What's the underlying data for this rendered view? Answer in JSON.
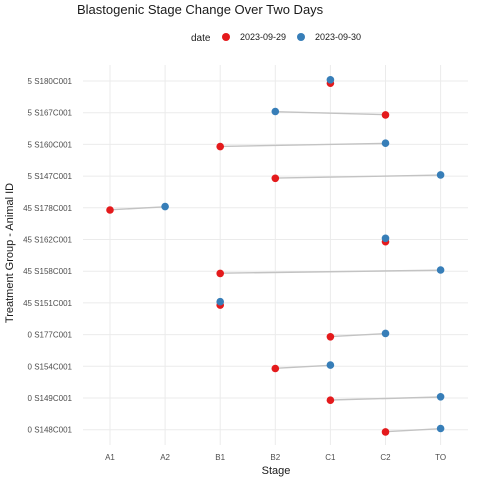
{
  "chart_data": {
    "type": "scatter",
    "title": "Blastogenic Stage Change Over Two Days",
    "xlabel": "Stage",
    "ylabel": "Treatment Group - Animal ID",
    "legend_title": "date",
    "legend_position": "top",
    "grid": true,
    "x_categories": [
      "A1",
      "A2",
      "B1",
      "B2",
      "C1",
      "C2",
      "TO"
    ],
    "y_categories": [
      "5 S180C001",
      "5 S167C001",
      "5 S160C001",
      "5 S147C001",
      "45 S178C001",
      "45 S162C001",
      "45 S158C001",
      "45 S151C001",
      "0 S177C001",
      "0 S154C001",
      "0 S149C001",
      "0 S148C001"
    ],
    "series": [
      {
        "name": "2023-09-29",
        "color": "#e41a1c",
        "points": [
          {
            "y": "5 S180C001",
            "x": "C1"
          },
          {
            "y": "5 S167C001",
            "x": "C2"
          },
          {
            "y": "5 S160C001",
            "x": "B1"
          },
          {
            "y": "5 S147C001",
            "x": "B2"
          },
          {
            "y": "45 S178C001",
            "x": "A1"
          },
          {
            "y": "45 S162C001",
            "x": "C2"
          },
          {
            "y": "45 S158C001",
            "x": "B1"
          },
          {
            "y": "45 S151C001",
            "x": "B1"
          },
          {
            "y": "0 S177C001",
            "x": "C1"
          },
          {
            "y": "0 S154C001",
            "x": "B2"
          },
          {
            "y": "0 S149C001",
            "x": "C1"
          },
          {
            "y": "0 S148C001",
            "x": "C2"
          }
        ]
      },
      {
        "name": "2023-09-30",
        "color": "#377eb8",
        "points": [
          {
            "y": "5 S180C001",
            "x": "C1"
          },
          {
            "y": "5 S167C001",
            "x": "B2"
          },
          {
            "y": "5 S160C001",
            "x": "C2"
          },
          {
            "y": "5 S147C001",
            "x": "TO"
          },
          {
            "y": "45 S178C001",
            "x": "A2"
          },
          {
            "y": "45 S162C001",
            "x": "C2"
          },
          {
            "y": "45 S158C001",
            "x": "TO"
          },
          {
            "y": "45 S151C001",
            "x": "B1"
          },
          {
            "y": "0 S177C001",
            "x": "C2"
          },
          {
            "y": "0 S154C001",
            "x": "C1"
          },
          {
            "y": "0 S149C001",
            "x": "TO"
          },
          {
            "y": "0 S148C001",
            "x": "TO"
          }
        ]
      }
    ]
  }
}
